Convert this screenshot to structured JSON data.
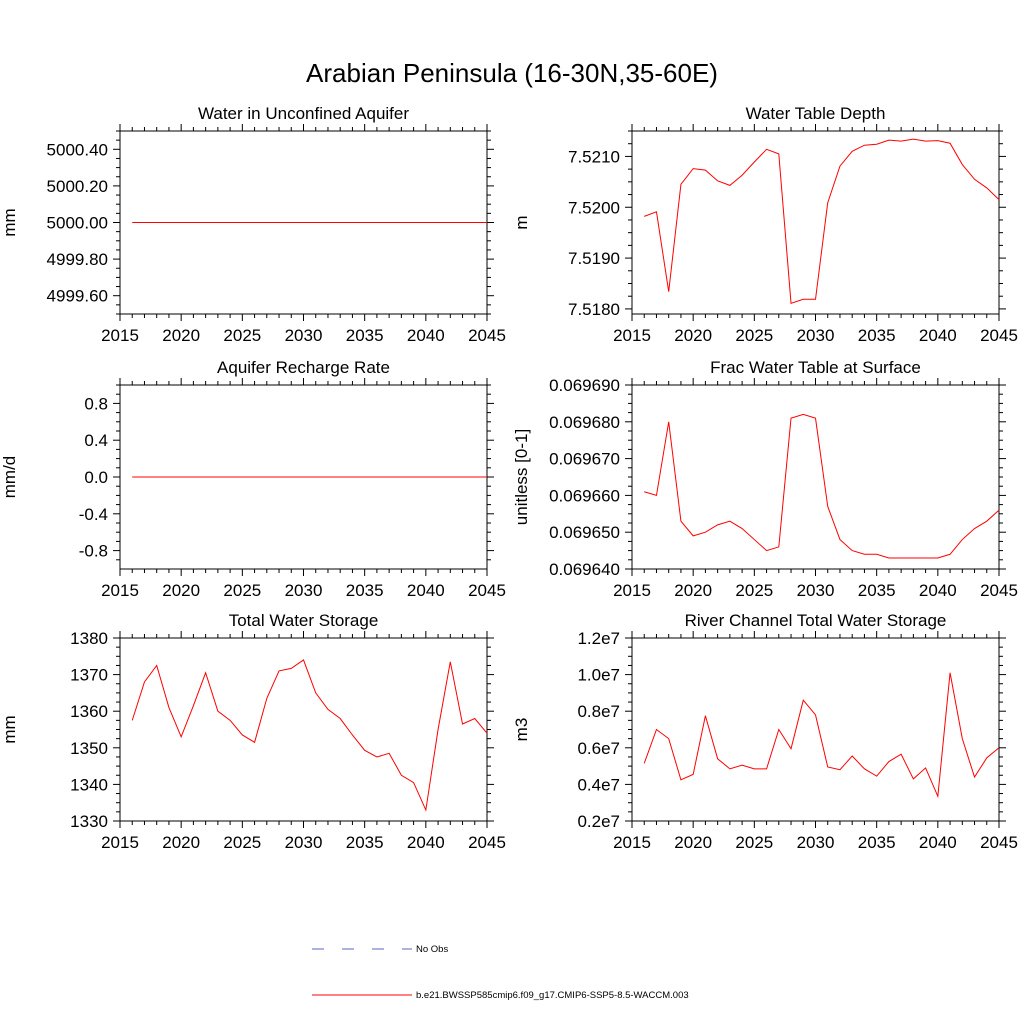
{
  "page": {
    "title": "Arabian Peninsula (16-30N,35-60E)"
  },
  "colors": {
    "series": "#ff0000",
    "no_obs": "#5566bb",
    "axis": "#000000"
  },
  "legend": {
    "placement": "bottom-center",
    "items": [
      {
        "label": "No Obs",
        "style": "dashed",
        "color": "#5566bb"
      },
      {
        "label": "b.e21.BWSSP585cmip6.f09_g17.CMIP6-SSP5-8.5-WACCM.003",
        "style": "solid",
        "color": "#ff0000"
      }
    ]
  },
  "chart_data": [
    {
      "type": "line",
      "title": "Water in Unconfined Aquifer",
      "ylabel": "mm",
      "xlim": [
        2015,
        2045
      ],
      "ylim": [
        4999.5,
        5000.5
      ],
      "xticks": [
        2015,
        2020,
        2025,
        2030,
        2035,
        2040,
        2045
      ],
      "yticks": [
        4999.6,
        4999.8,
        5000.0,
        5000.2,
        5000.4
      ],
      "ytick_labels": [
        "4999.60",
        "4999.80",
        "5000.00",
        "5000.20",
        "5000.40"
      ],
      "series": [
        {
          "x": [
            2016,
            2017,
            2018,
            2019,
            2020,
            2021,
            2022,
            2023,
            2024,
            2025,
            2026,
            2027,
            2028,
            2029,
            2030,
            2031,
            2032,
            2033,
            2034,
            2035,
            2036,
            2037,
            2038,
            2039,
            2040,
            2041,
            2042,
            2043,
            2044,
            2045
          ],
          "y": [
            5000,
            5000,
            5000,
            5000,
            5000,
            5000,
            5000,
            5000,
            5000,
            5000,
            5000,
            5000,
            5000,
            5000,
            5000,
            5000,
            5000,
            5000,
            5000,
            5000,
            5000,
            5000,
            5000,
            5000,
            5000,
            5000,
            5000,
            5000,
            5000,
            5000
          ]
        }
      ]
    },
    {
      "type": "line",
      "title": "Water Table Depth",
      "ylabel": "m",
      "xlim": [
        2015,
        2045
      ],
      "ylim": [
        7.5179,
        7.5215
      ],
      "xticks": [
        2015,
        2020,
        2025,
        2030,
        2035,
        2040,
        2045
      ],
      "yticks": [
        7.518,
        7.519,
        7.52,
        7.521
      ],
      "ytick_labels": [
        "7.5180",
        "7.5190",
        "7.5200",
        "7.5210"
      ],
      "series": [
        {
          "x": [
            2016,
            2017,
            2018,
            2019,
            2020,
            2021,
            2022,
            2023,
            2024,
            2025,
            2026,
            2027,
            2028,
            2029,
            2030,
            2031,
            2032,
            2033,
            2034,
            2035,
            2036,
            2037,
            2038,
            2039,
            2040,
            2041,
            2042,
            2043,
            2044,
            2045
          ],
          "y": [
            7.51982,
            7.51991,
            7.51834,
            7.52045,
            7.52076,
            7.52073,
            7.52052,
            7.52043,
            7.52063,
            7.52089,
            7.52114,
            7.52105,
            7.51811,
            7.51819,
            7.51819,
            7.52009,
            7.52081,
            7.5211,
            7.52122,
            7.52124,
            7.52132,
            7.5213,
            7.52134,
            7.5213,
            7.52131,
            7.52126,
            7.52084,
            7.52055,
            7.52038,
            7.52015
          ]
        }
      ]
    },
    {
      "type": "line",
      "title": "Aquifer Recharge Rate",
      "ylabel": "mm/d",
      "xlim": [
        2015,
        2045
      ],
      "ylim": [
        -1,
        1
      ],
      "xticks": [
        2015,
        2020,
        2025,
        2030,
        2035,
        2040,
        2045
      ],
      "yticks": [
        -0.8,
        -0.4,
        0.0,
        0.4,
        0.8
      ],
      "ytick_labels": [
        "-0.8",
        "-0.4",
        "0.0",
        "0.4",
        "0.8"
      ],
      "series": [
        {
          "x": [
            2016,
            2017,
            2018,
            2019,
            2020,
            2021,
            2022,
            2023,
            2024,
            2025,
            2026,
            2027,
            2028,
            2029,
            2030,
            2031,
            2032,
            2033,
            2034,
            2035,
            2036,
            2037,
            2038,
            2039,
            2040,
            2041,
            2042,
            2043,
            2044,
            2045
          ],
          "y": [
            0,
            0,
            0,
            0,
            0,
            0,
            0,
            0,
            0,
            0,
            0,
            0,
            0,
            0,
            0,
            0,
            0,
            0,
            0,
            0,
            0,
            0,
            0,
            0,
            0,
            0,
            0,
            0,
            0,
            0
          ]
        }
      ]
    },
    {
      "type": "line",
      "title": "Frac Water Table at Surface",
      "ylabel": "unitless [0-1]",
      "xlim": [
        2015,
        2045
      ],
      "ylim": [
        0.06964,
        0.06969
      ],
      "xticks": [
        2015,
        2020,
        2025,
        2030,
        2035,
        2040,
        2045
      ],
      "yticks": [
        0.06964,
        0.06965,
        0.06966,
        0.06967,
        0.06968,
        0.06969
      ],
      "ytick_labels": [
        "0.069640",
        "0.069650",
        "0.069660",
        "0.069670",
        "0.069680",
        "0.069690"
      ],
      "series": [
        {
          "x": [
            2016,
            2017,
            2018,
            2019,
            2020,
            2021,
            2022,
            2023,
            2024,
            2025,
            2026,
            2027,
            2028,
            2029,
            2030,
            2031,
            2032,
            2033,
            2034,
            2035,
            2036,
            2037,
            2038,
            2039,
            2040,
            2041,
            2042,
            2043,
            2044,
            2045
          ],
          "y": [
            0.069661,
            0.06966,
            0.06968,
            0.069653,
            0.069649,
            0.06965,
            0.069652,
            0.069653,
            0.069651,
            0.069648,
            0.069645,
            0.069646,
            0.069681,
            0.069682,
            0.069681,
            0.069657,
            0.069648,
            0.069645,
            0.069644,
            0.069644,
            0.069643,
            0.069643,
            0.069643,
            0.069643,
            0.069643,
            0.069644,
            0.069648,
            0.069651,
            0.069653,
            0.069656
          ]
        }
      ]
    },
    {
      "type": "line",
      "title": "Total Water Storage",
      "ylabel": "mm",
      "xlim": [
        2015,
        2045
      ],
      "ylim": [
        1330,
        1380
      ],
      "xticks": [
        2015,
        2020,
        2025,
        2030,
        2035,
        2040,
        2045
      ],
      "yticks": [
        1330,
        1340,
        1350,
        1360,
        1370,
        1380
      ],
      "ytick_labels": [
        "1330",
        "1340",
        "1350",
        "1360",
        "1370",
        "1380"
      ],
      "series": [
        {
          "x": [
            2016,
            2017,
            2018,
            2019,
            2020,
            2021,
            2022,
            2023,
            2024,
            2025,
            2026,
            2027,
            2028,
            2029,
            2030,
            2031,
            2032,
            2033,
            2034,
            2035,
            2036,
            2037,
            2038,
            2039,
            2040,
            2041,
            2042,
            2043,
            2044,
            2045
          ],
          "y": [
            1357.5,
            1368,
            1372.5,
            1361,
            1353,
            1361.5,
            1370.5,
            1360,
            1357.5,
            1353.5,
            1351.5,
            1363.5,
            1371,
            1371.7,
            1374,
            1365,
            1360.5,
            1358,
            1353.5,
            1349.3,
            1347.5,
            1348.5,
            1342.5,
            1340.5,
            1333,
            1355,
            1373.5,
            1356.5,
            1358,
            1354
          ]
        }
      ]
    },
    {
      "type": "line",
      "title": "River Channel Total Water Storage",
      "ylabel": "m3",
      "xlim": [
        2015,
        2045
      ],
      "ylim": [
        2000000,
        12000000
      ],
      "xticks": [
        2015,
        2020,
        2025,
        2030,
        2035,
        2040,
        2045
      ],
      "yticks": [
        2000000,
        4000000,
        6000000,
        8000000,
        10000000,
        12000000
      ],
      "ytick_labels": [
        "0.2e7",
        "0.4e7",
        "0.6e7",
        "0.8e7",
        "1.0e7",
        "1.2e7"
      ],
      "series": [
        {
          "x": [
            2016,
            2017,
            2018,
            2019,
            2020,
            2021,
            2022,
            2023,
            2024,
            2025,
            2026,
            2027,
            2028,
            2029,
            2030,
            2031,
            2032,
            2033,
            2034,
            2035,
            2036,
            2037,
            2038,
            2039,
            2040,
            2041,
            2042,
            2043,
            2044,
            2045
          ],
          "y": [
            5150000,
            7000000,
            6500000,
            4250000,
            4550000,
            7750000,
            5400000,
            4850000,
            5050000,
            4850000,
            4850000,
            7000000,
            5950000,
            8600000,
            7800000,
            4950000,
            4800000,
            5550000,
            4850000,
            4450000,
            5250000,
            5650000,
            4300000,
            4900000,
            3350000,
            10100000,
            6500000,
            4400000,
            5450000,
            6000000
          ]
        }
      ]
    }
  ]
}
